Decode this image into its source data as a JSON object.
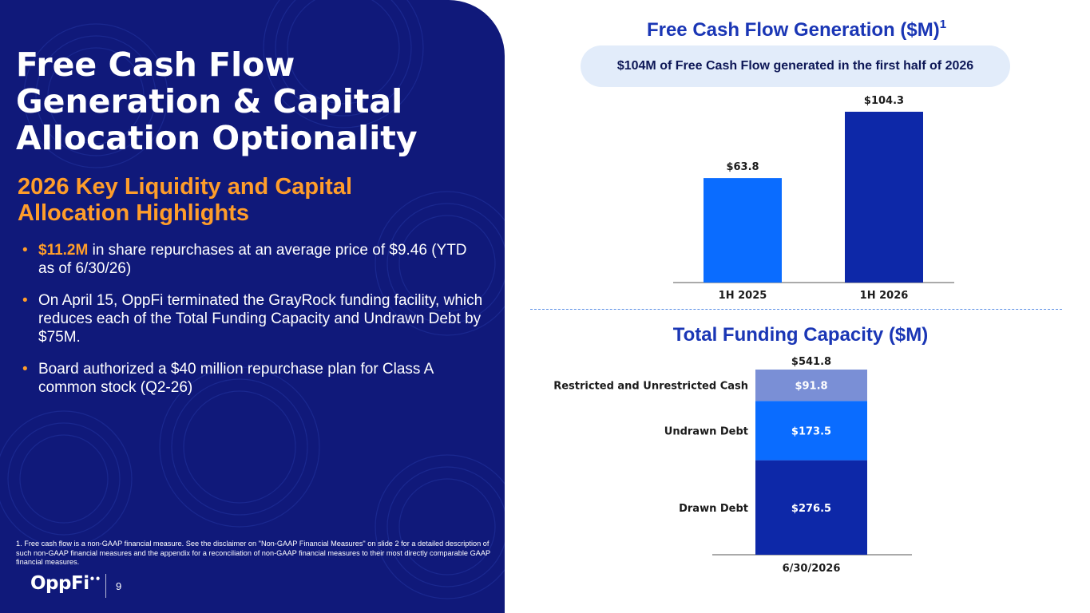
{
  "slide": {
    "title": "Free Cash Flow Generation & Capital Allocation Optionality",
    "subtitle": "2026 Key Liquidity and Capital Allocation Highlights",
    "bullets": [
      {
        "highlight": "$11.2M",
        "text": " in share repurchases at an average price of $9.46 (YTD as of 6/30/26)"
      },
      {
        "highlight": "",
        "text": "On April 15, OppFi terminated the GrayRock funding facility, which reduces each of the Total Funding Capacity and Undrawn Debt by $75M."
      },
      {
        "highlight": "",
        "text": "Board authorized a $40 million repurchase plan for Class A common stock (Q2-26)"
      }
    ],
    "bullet_glyph": "•",
    "footnote": "1. Free cash flow is a non-GAAP financial measure. See the disclaimer on \"Non-GAAP Financial Measures\" on slide 2 for a detailed description of such non-GAAP financial measures and the appendix for a reconciliation of non-GAAP financial measures to their most directly comparable GAAP financial measures.",
    "logo_text": "OppFi",
    "logo_dots": "••",
    "page_number": "9",
    "colors": {
      "navy_panel": "#10197a",
      "accent_orange": "#ff9d2a",
      "heading_blue": "#1a36b5"
    }
  },
  "chart_data": [
    {
      "type": "bar",
      "title": "Free Cash Flow Generation ($M)",
      "title_superscript": "1",
      "callout": "$104M of Free Cash Flow generated in the first half of 2026",
      "categories": [
        "1H 2025",
        "1H 2026"
      ],
      "values": [
        63.8,
        104.3
      ],
      "value_labels": [
        "$63.8",
        "$104.3"
      ],
      "colors": [
        "#0a6cff",
        "#0d28a8"
      ],
      "ylim": [
        0,
        104.3
      ],
      "grid": false,
      "legend": "none"
    },
    {
      "type": "bar",
      "stacked": true,
      "title": "Total Funding Capacity ($M)",
      "categories": [
        "6/30/2026"
      ],
      "total_label": "$541.8",
      "total": 541.8,
      "series": [
        {
          "name": "Drawn Debt",
          "values": [
            276.5
          ],
          "value_label": "$276.5",
          "color": "#0d28a8"
        },
        {
          "name": "Undrawn Debt",
          "values": [
            173.5
          ],
          "value_label": "$173.5",
          "color": "#0a6cff"
        },
        {
          "name": "Restricted and Unrestricted Cash",
          "values": [
            91.8
          ],
          "value_label": "$91.8",
          "color": "#7a8fd6"
        }
      ],
      "ylim": [
        0,
        541.8
      ],
      "grid": false,
      "legend": "left-of-bar labels"
    }
  ]
}
